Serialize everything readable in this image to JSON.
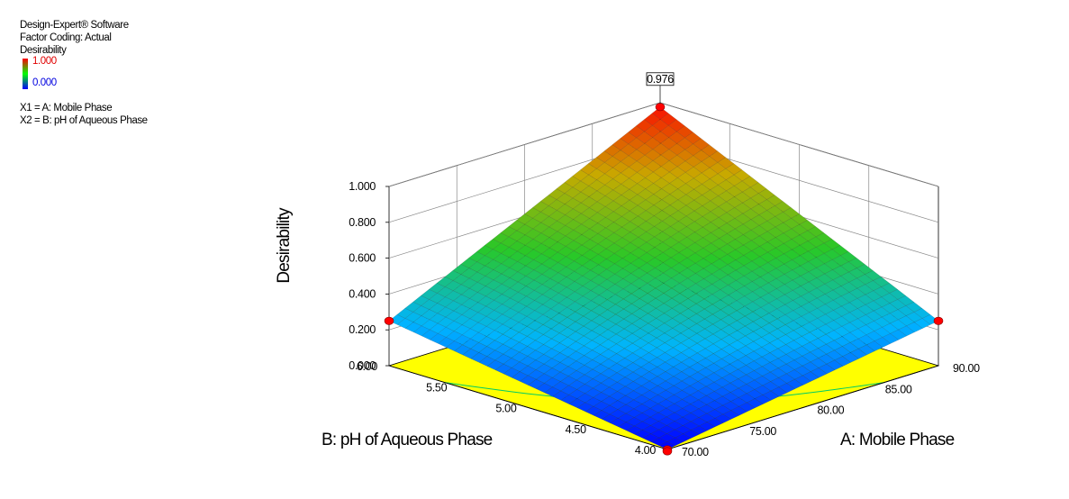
{
  "header": {
    "software": "Design-Expert® Software",
    "coding": "Factor Coding: Actual",
    "response": "Desirability",
    "color_max": "1.000",
    "color_min": "0.000",
    "x1_def": "X1 = A: Mobile Phase",
    "x2_def": "X2 = B: pH of Aqueous Phase"
  },
  "colors": {
    "low": "#0000ff",
    "mid": "#00ff00",
    "high": "#ff0000",
    "contour_floor": "#ffff00",
    "contour_line": "#00cc66",
    "design_point": "#ff0000"
  },
  "chart_data": {
    "type": "surface",
    "xlabel": "A: Mobile Phase",
    "ylabel": "B: pH of Aqueous Phase",
    "zlabel": "Desirability",
    "x_ticks": [
      "70.00",
      "75.00",
      "80.00",
      "85.00",
      "90.00"
    ],
    "y_ticks": [
      "4.00",
      "4.50",
      "5.00",
      "5.50",
      "6.00"
    ],
    "z_ticks": [
      "0.000",
      "0.200",
      "0.400",
      "0.600",
      "0.800",
      "1.000"
    ],
    "xlim": [
      70,
      90
    ],
    "ylim": [
      4,
      6
    ],
    "zlim": [
      0,
      1
    ],
    "annotation": "0.976",
    "corner_points": [
      {
        "A": 70,
        "B": 4,
        "desirability": 0.0
      },
      {
        "A": 90,
        "B": 4,
        "desirability": 0.25
      },
      {
        "A": 70,
        "B": 6,
        "desirability": 0.25
      },
      {
        "A": 90,
        "B": 6,
        "desirability": 0.976
      }
    ]
  }
}
